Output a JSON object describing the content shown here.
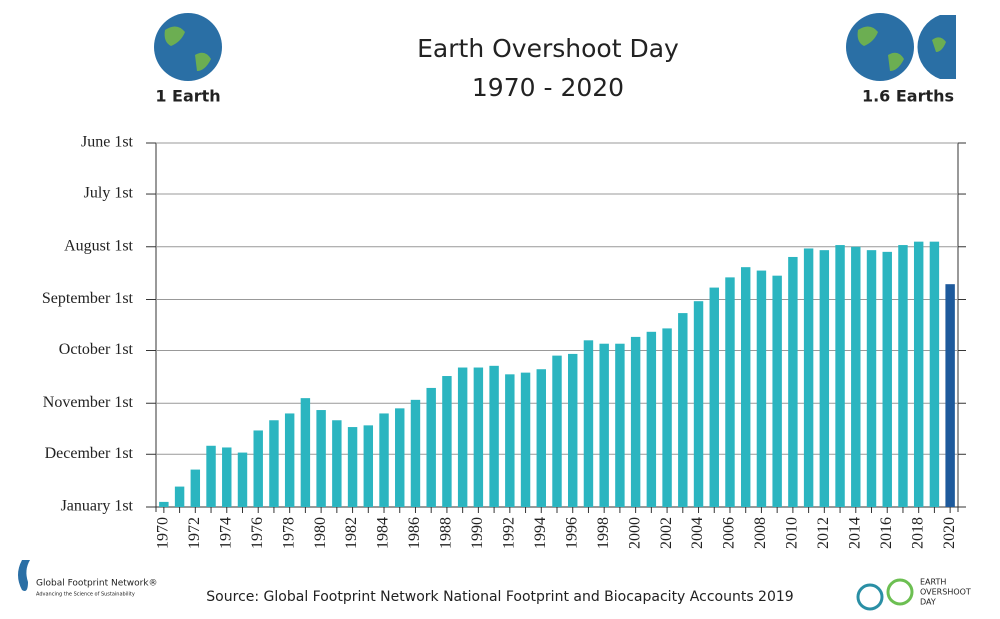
{
  "chart_data": {
    "type": "bar",
    "title": "Earth Overshoot Day",
    "subtitle": "1970 - 2020",
    "annotations": {
      "left_globe": "1 Earth",
      "right_globe": "1.6 Earths",
      "source": "Source: Global Footprint Network National Footprint and Biocapacity Accounts 2019",
      "logo_left": "Global Footprint Network®",
      "logo_left_tagline": "Advancing the Science of Sustainability",
      "logo_right": [
        "EARTH",
        "OVERSHOOT",
        "DAY"
      ]
    },
    "categories": [
      "1970",
      null,
      "1972",
      null,
      "1974",
      null,
      "1976",
      null,
      "1978",
      null,
      "1980",
      null,
      "1982",
      null,
      "1984",
      null,
      "1986",
      null,
      "1988",
      null,
      "1990",
      null,
      "1992",
      null,
      "1994",
      null,
      "1996",
      null,
      "1998",
      null,
      "2000",
      null,
      "2002",
      null,
      "2004",
      null,
      "2006",
      null,
      "2008",
      null,
      "2010",
      null,
      "2012",
      null,
      "2014",
      null,
      "2016",
      null,
      "2018",
      null,
      "2020"
    ],
    "values": [
      363,
      354,
      344,
      330,
      331,
      334,
      321,
      315,
      311,
      302,
      309,
      315,
      319,
      318,
      311,
      308,
      303,
      296,
      289,
      284,
      284,
      283,
      288,
      287,
      285,
      277,
      276,
      268,
      270,
      270,
      266,
      263,
      261,
      252,
      245,
      237,
      231,
      225,
      227,
      230,
      219,
      214,
      215,
      212,
      213,
      215,
      216,
      212,
      210,
      210,
      235
    ],
    "colors": [
      "#2bb5c0",
      "#2bb5c0",
      "#2bb5c0",
      "#2bb5c0",
      "#2bb5c0",
      "#2bb5c0",
      "#2bb5c0",
      "#2bb5c0",
      "#2bb5c0",
      "#2bb5c0",
      "#2bb5c0",
      "#2bb5c0",
      "#2bb5c0",
      "#2bb5c0",
      "#2bb5c0",
      "#2bb5c0",
      "#2bb5c0",
      "#2bb5c0",
      "#2bb5c0",
      "#2bb5c0",
      "#2bb5c0",
      "#2bb5c0",
      "#2bb5c0",
      "#2bb5c0",
      "#2bb5c0",
      "#2bb5c0",
      "#2bb5c0",
      "#2bb5c0",
      "#2bb5c0",
      "#2bb5c0",
      "#2bb5c0",
      "#2bb5c0",
      "#2bb5c0",
      "#2bb5c0",
      "#2bb5c0",
      "#2bb5c0",
      "#2bb5c0",
      "#2bb5c0",
      "#2bb5c0",
      "#2bb5c0",
      "#2bb5c0",
      "#2bb5c0",
      "#2bb5c0",
      "#2bb5c0",
      "#2bb5c0",
      "#2bb5c0",
      "#2bb5c0",
      "#2bb5c0",
      "#2bb5c0",
      "#2bb5c0",
      "#1e5a9c"
    ],
    "ylim": [
      366,
      152
    ],
    "yticks": [
      {
        "value": 152,
        "label": "June 1st"
      },
      {
        "value": 182,
        "label": "July 1st"
      },
      {
        "value": 213,
        "label": "August 1st"
      },
      {
        "value": 244,
        "label": "September 1st"
      },
      {
        "value": 274,
        "label": "October 1st"
      },
      {
        "value": 305,
        "label": "November 1st"
      },
      {
        "value": 335,
        "label": "December 1st"
      },
      {
        "value": 366,
        "label": "January 1st"
      }
    ],
    "grid": true
  }
}
